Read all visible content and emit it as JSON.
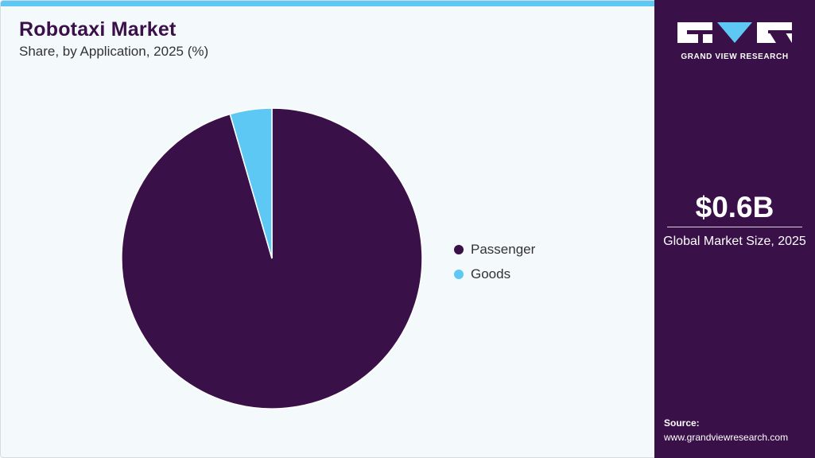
{
  "header": {
    "title": "Robotaxi Market",
    "subtitle": "Share, by Application, 2025 (%)"
  },
  "chart_data": {
    "type": "pie",
    "title": "Robotaxi Market",
    "subtitle": "Share, by Application, 2025 (%)",
    "categories": [
      "Passenger",
      "Goods"
    ],
    "values": [
      95.5,
      4.5
    ],
    "colors": [
      "#3a1049",
      "#5ec8f5"
    ],
    "legend_position": "right"
  },
  "legend": {
    "items": [
      {
        "label": "Passenger",
        "color": "#3a1049"
      },
      {
        "label": "Goods",
        "color": "#5ec8f5"
      }
    ]
  },
  "sidebar": {
    "brand": "GRAND VIEW RESEARCH",
    "market_size": "$0.6B",
    "market_size_caption": "Global Market Size, 2025",
    "source_label": "Source:",
    "source_url": "www.grandviewresearch.com"
  },
  "colors": {
    "accent": "#5ec8f5",
    "brand": "#3a1049",
    "background": "#f4f9fc"
  }
}
